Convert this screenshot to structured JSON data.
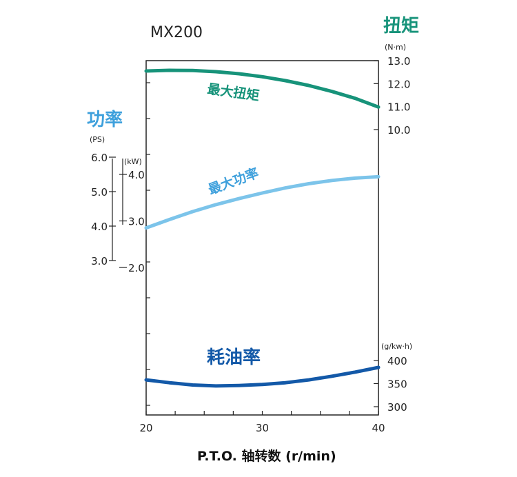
{
  "chart_data": {
    "type": "line",
    "title": "MX200",
    "xlabel": "P.T.O. 轴转数 (r/min)",
    "x_ticks": [
      "20",
      "30",
      "40"
    ],
    "xlim": [
      20,
      40
    ],
    "axes": {
      "torque": {
        "title": "扭矩",
        "unit": "(N·m)",
        "ticks": [
          "13.0",
          "12.0",
          "11.0",
          "10.0"
        ],
        "ylim": [
          10.0,
          13.0
        ]
      },
      "power_ps": {
        "title": "功率",
        "unit": "(PS)",
        "ticks": [
          "6.0",
          "5.0",
          "4.0",
          "3.0"
        ],
        "ylim": [
          3.0,
          6.0
        ]
      },
      "power_kw": {
        "unit": "(kW)",
        "ticks": [
          "4.0",
          "3.0",
          "2.0"
        ],
        "ylim": [
          2.0,
          4.0
        ]
      },
      "fuel": {
        "unit": "(g/kw·h)",
        "ticks": [
          "400",
          "350",
          "300"
        ],
        "ylim": [
          300,
          400
        ]
      }
    },
    "series": [
      {
        "name": "最大扭矩",
        "axis": "torque",
        "color": "#17937a",
        "x": [
          20,
          22,
          24,
          26,
          28,
          30,
          32,
          34,
          36,
          38,
          40
        ],
        "y": [
          12.55,
          12.58,
          12.57,
          12.52,
          12.43,
          12.3,
          12.13,
          11.92,
          11.66,
          11.36,
          10.98
        ]
      },
      {
        "name": "最大功率",
        "axis": "power_kw",
        "color": "#7cc4ea",
        "x": [
          20,
          22,
          24,
          26,
          28,
          30,
          32,
          34,
          36,
          38,
          40
        ],
        "y": [
          2.85,
          3.03,
          3.2,
          3.35,
          3.48,
          3.6,
          3.71,
          3.8,
          3.87,
          3.92,
          3.95
        ]
      },
      {
        "name": "耗油率",
        "axis": "fuel",
        "color": "#1359a8",
        "x": [
          20,
          22,
          24,
          26,
          28,
          30,
          32,
          34,
          36,
          38,
          40
        ],
        "y": [
          358,
          352,
          347,
          345,
          346,
          348,
          352,
          358,
          366,
          375,
          385
        ]
      }
    ]
  },
  "colors": {
    "torque": "#17937a",
    "power": "#3ea0dc",
    "power_line": "#7cc4ea",
    "fuel": "#1359a8",
    "frame": "#222222"
  }
}
